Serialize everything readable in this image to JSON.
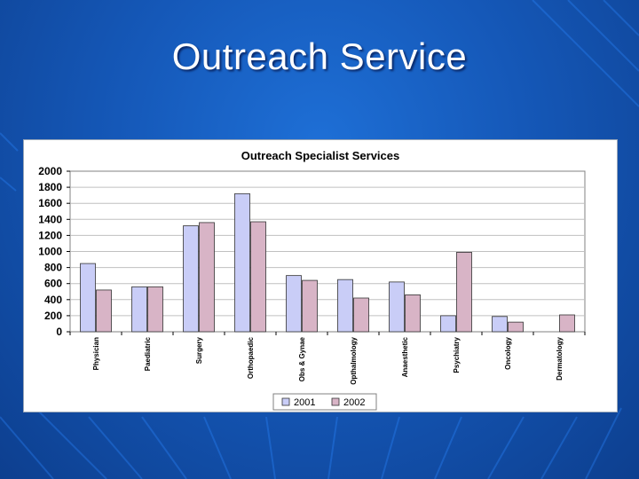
{
  "slide": {
    "title": "Outreach Service"
  },
  "colors": {
    "series_2001": "#c9cdf7",
    "series_2002": "#d8b4c6",
    "grid": "#c0c0c0",
    "plot_bg": "#ffffff"
  },
  "chart_data": {
    "type": "bar",
    "title": "Outreach Specialist Services",
    "xlabel": "",
    "ylabel": "",
    "ylim": [
      0,
      2000
    ],
    "yticks": [
      "2000",
      "1800",
      "1600",
      "1400",
      "1200",
      "1000",
      "800",
      "600",
      "400",
      "200",
      "0"
    ],
    "categories": [
      "Physician",
      "Paediatric",
      "Surgery",
      "Orthopaedic",
      "Obs & Gynae",
      "Opthalmology",
      "Anaesthetic",
      "Psychiatry",
      "Oncology",
      "Dermatology"
    ],
    "series": [
      {
        "name": "2001",
        "values": [
          850,
          560,
          1320,
          1720,
          700,
          650,
          620,
          200,
          190,
          0
        ]
      },
      {
        "name": "2002",
        "values": [
          520,
          560,
          1360,
          1370,
          640,
          420,
          460,
          990,
          120,
          210
        ]
      }
    ],
    "legend_position": "bottom"
  }
}
